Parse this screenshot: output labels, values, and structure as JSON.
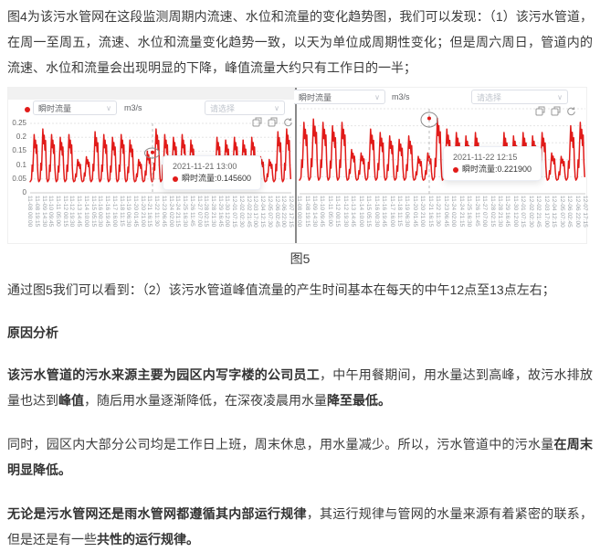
{
  "page": {
    "paragraph1": "图4为该污水管网在这段监测周期内流速、水位和流量的变化趋势图，我们可以发现：（1）该污水管道，在周一至周五，流速、水位和流量变化趋势一致，以天为单位成周期性变化；但是周六周日，管道内的流速、水位和流量会出现明显的下降，峰值流量大约只有工作日的一半；",
    "figure_caption": "图5",
    "paragraph2": "通过图5我们可以看到：（2）该污水管道峰值流量的产生时间基本在每天的中午12点至13点左右；",
    "heading_analysis": "原因分析",
    "paragraph3": {
      "bold1": "该污水管道的污水来源主要为园区内写字楼的公司员工",
      "normal1": "，中午用餐期间，用水量达到高峰，故污水排放量也达到",
      "bold2": "峰值",
      "normal2": "，随后用水量逐渐降低，在深夜凌晨用水量",
      "bold3": "降至最低。"
    },
    "paragraph4": {
      "normal1": "同时，园区内大部分公司均是工作日上班，周末休息，用水量减少。所以，污水管道中的污水量",
      "bold1": "在周末明显降低。"
    },
    "paragraph5": {
      "bold1": "无论是污水管网还是雨水管网都遵循其内部运行规律",
      "normal1": "，其运行规律与管网的水量来源有着紧密的联系，但是还是有一些",
      "bold2": "共性的运行规律。"
    }
  },
  "colors": {
    "line": "#e11b19",
    "grid": "#e5e5e5",
    "axis": "#cccccc",
    "tick_text": "#9aa0a6",
    "divider": "#8a8a8a"
  },
  "chart_data": [
    {
      "type": "line",
      "series_name": "瞬时流量",
      "unit": "m3/s",
      "select_placeholder": "请选择",
      "legend_position": "top-left",
      "grid": true,
      "ylim": [
        0,
        0.25
      ],
      "y_ticks": [
        "0",
        "0.05",
        "0.1",
        "0.15",
        "0.2",
        "0.25"
      ],
      "x_ticks": [
        "11-08 00:00",
        "11-08 19:15",
        "11-09 14:30",
        "11-10 09:45",
        "11-11 05:00",
        "11-12 00:15",
        "11-12 19:30",
        "11-13 14:45",
        "11-14 10:00",
        "11-15 05:15",
        "11-16 00:30",
        "11-16 19:45",
        "11-17 16:00",
        "11-18 11:15",
        "11-19 06:30",
        "11-20 01:45",
        "11-20 21:00",
        "11-21 16:15",
        "11-22 11:30",
        "11-23 06:45",
        "11-24 02:00",
        "11-24 21:15",
        "11-25 16:30",
        "11-26 11:45",
        "11-27 07:00",
        "11-28 02:15",
        "11-28 21:30",
        "11-29 16:45",
        "11-30 12:00",
        "12-01 07:15",
        "12-02 02:30",
        "12-02 21:45",
        "12-03 17:00",
        "12-04 12:15",
        "12-05 07:30",
        "12-06 02:45",
        "12-06 22:00",
        "12-07 17:15"
      ],
      "dates": [
        "11-08",
        "11-09",
        "11-10",
        "11-11",
        "11-12",
        "11-13",
        "11-14",
        "11-15",
        "11-16",
        "11-17",
        "11-18",
        "11-19",
        "11-20",
        "11-21",
        "11-22",
        "11-23",
        "11-24",
        "11-25",
        "11-26",
        "11-27",
        "11-28",
        "11-29",
        "11-30",
        "12-01",
        "12-02",
        "12-03",
        "12-04",
        "12-05",
        "12-06",
        "12-07"
      ],
      "daily_peaks": [
        0.21,
        0.23,
        0.21,
        0.2,
        0.21,
        0.12,
        0.13,
        0.22,
        0.21,
        0.2,
        0.21,
        0.19,
        0.12,
        0.15,
        0.23,
        0.21,
        0.2,
        0.21,
        0.19,
        0.13,
        0.12,
        0.2,
        0.19,
        0.2,
        0.19,
        0.2,
        0.13,
        0.12,
        0.22,
        0.23
      ],
      "base_value": 0.04,
      "day_profile": [
        0.0,
        0.02,
        0.05,
        0.35,
        0.22,
        0.62,
        1.0,
        0.72,
        0.88,
        0.6,
        0.78,
        0.3,
        0.06
      ],
      "tooltip": {
        "datetime": "2021-11-21 13:00",
        "value_line": "瞬时流量:0.145600"
      },
      "highlight": {
        "datetime": "2021-11-21 13:00",
        "value": 0.1456
      }
    },
    {
      "type": "line",
      "series_name": "瞬时流量",
      "unit": "m3/s",
      "select_placeholder": "请选择",
      "legend_position": "top-left",
      "grid": true,
      "ylim": [
        0,
        0.25
      ],
      "y_ticks": [
        "0",
        "0.05",
        "0.1",
        "0.15",
        "0.2",
        "0.25"
      ],
      "x_ticks": [
        "11-08 00:00",
        "11-08 19:15",
        "11-09 14:30",
        "11-10 09:45",
        "11-11 05:00",
        "11-12 00:15",
        "11-12 19:30",
        "11-13 14:45",
        "11-14 10:00",
        "11-15 05:15",
        "11-16 00:30",
        "11-16 19:45",
        "11-17 16:00",
        "11-18 11:15",
        "11-19 06:30",
        "11-20 01:45",
        "11-20 21:00",
        "11-21 16:15",
        "11-22 11:30",
        "11-23 06:45",
        "11-24 02:00",
        "11-24 21:15",
        "11-25 16:30",
        "11-26 11:45",
        "11-27 07:00",
        "11-28 02:15",
        "11-28 21:30",
        "11-29 16:45",
        "11-30 12:00",
        "12-01 07:15",
        "12-02 02:30",
        "12-02 21:45",
        "12-03 17:00",
        "12-04 12:15",
        "12-05 07:30",
        "12-06 02:45",
        "12-06 22:00",
        "12-07 17:15"
      ],
      "dates": [
        "11-08",
        "11-09",
        "11-10",
        "11-11",
        "11-12",
        "11-13",
        "11-14",
        "11-15",
        "11-16",
        "11-17",
        "11-18",
        "11-19",
        "11-20",
        "11-21",
        "11-22",
        "11-23",
        "11-24",
        "11-25",
        "11-26",
        "11-27",
        "11-28",
        "11-29",
        "11-30",
        "12-01",
        "12-02",
        "12-03",
        "12-04",
        "12-05",
        "12-06",
        "12-07"
      ],
      "daily_peaks": [
        0.21,
        0.22,
        0.21,
        0.2,
        0.21,
        0.13,
        0.12,
        0.19,
        0.18,
        0.17,
        0.16,
        0.17,
        0.11,
        0.12,
        0.222,
        0.19,
        0.18,
        0.17,
        0.18,
        0.12,
        0.11,
        0.18,
        0.17,
        0.18,
        0.17,
        0.18,
        0.12,
        0.11,
        0.2,
        0.21
      ],
      "base_value": 0.04,
      "day_profile": [
        0.0,
        0.02,
        0.05,
        0.35,
        0.22,
        0.62,
        1.0,
        0.72,
        0.88,
        0.6,
        0.78,
        0.3,
        0.06
      ],
      "tooltip": {
        "datetime": "2021-11-22 12:15",
        "value_line": "瞬时流量:0.221900"
      },
      "highlight": {
        "datetime": "2021-11-22 12:15",
        "value": 0.2219
      }
    }
  ]
}
